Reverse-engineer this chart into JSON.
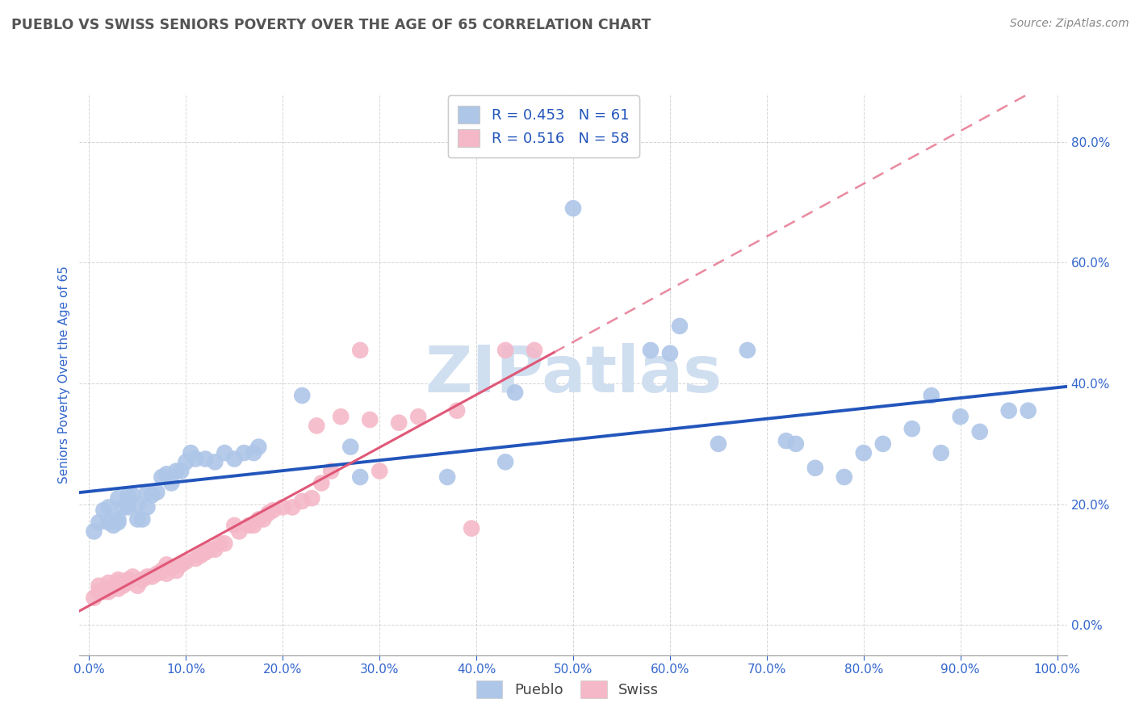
{
  "title": "PUEBLO VS SWISS SENIORS POVERTY OVER THE AGE OF 65 CORRELATION CHART",
  "source_text": "Source: ZipAtlas.com",
  "ylabel": "Seniors Poverty Over the Age of 65",
  "pueblo_R": 0.453,
  "pueblo_N": 61,
  "swiss_R": 0.516,
  "swiss_N": 58,
  "xlim": [
    -0.01,
    1.01
  ],
  "ylim": [
    -0.05,
    0.88
  ],
  "xticks": [
    0.0,
    0.1,
    0.2,
    0.3,
    0.4,
    0.5,
    0.6,
    0.7,
    0.8,
    0.9,
    1.0
  ],
  "yticks": [
    0.0,
    0.2,
    0.4,
    0.6,
    0.8
  ],
  "pueblo_color": "#aec6e8",
  "swiss_color": "#f4b8c8",
  "pueblo_line_color": "#2255bb",
  "swiss_line_color": "#e05878",
  "pueblo_scatter_x": [
    0.005,
    0.01,
    0.015,
    0.02,
    0.02,
    0.025,
    0.03,
    0.03,
    0.03,
    0.035,
    0.04,
    0.04,
    0.04,
    0.045,
    0.05,
    0.05,
    0.055,
    0.06,
    0.06,
    0.065,
    0.07,
    0.075,
    0.08,
    0.085,
    0.09,
    0.095,
    0.1,
    0.105,
    0.11,
    0.12,
    0.13,
    0.14,
    0.15,
    0.16,
    0.17,
    0.175,
    0.22,
    0.27,
    0.28,
    0.37,
    0.43,
    0.44,
    0.5,
    0.58,
    0.6,
    0.61,
    0.65,
    0.68,
    0.72,
    0.73,
    0.75,
    0.78,
    0.8,
    0.82,
    0.85,
    0.87,
    0.88,
    0.9,
    0.92,
    0.95,
    0.97
  ],
  "pueblo_scatter_y": [
    0.155,
    0.17,
    0.19,
    0.17,
    0.195,
    0.165,
    0.17,
    0.175,
    0.21,
    0.195,
    0.195,
    0.2,
    0.215,
    0.215,
    0.175,
    0.2,
    0.175,
    0.195,
    0.22,
    0.215,
    0.22,
    0.245,
    0.25,
    0.235,
    0.255,
    0.255,
    0.27,
    0.285,
    0.275,
    0.275,
    0.27,
    0.285,
    0.275,
    0.285,
    0.285,
    0.295,
    0.38,
    0.295,
    0.245,
    0.245,
    0.27,
    0.385,
    0.69,
    0.455,
    0.45,
    0.495,
    0.3,
    0.455,
    0.305,
    0.3,
    0.26,
    0.245,
    0.285,
    0.3,
    0.325,
    0.38,
    0.285,
    0.345,
    0.32,
    0.355,
    0.355
  ],
  "swiss_scatter_x": [
    0.005,
    0.01,
    0.01,
    0.015,
    0.02,
    0.02,
    0.025,
    0.03,
    0.03,
    0.03,
    0.035,
    0.04,
    0.04,
    0.045,
    0.05,
    0.055,
    0.06,
    0.065,
    0.07,
    0.075,
    0.08,
    0.08,
    0.085,
    0.09,
    0.095,
    0.1,
    0.11,
    0.115,
    0.12,
    0.125,
    0.13,
    0.135,
    0.14,
    0.15,
    0.155,
    0.165,
    0.17,
    0.175,
    0.18,
    0.185,
    0.19,
    0.2,
    0.21,
    0.22,
    0.23,
    0.235,
    0.24,
    0.25,
    0.26,
    0.28,
    0.29,
    0.3,
    0.32,
    0.34,
    0.38,
    0.395,
    0.43,
    0.46
  ],
  "swiss_scatter_y": [
    0.045,
    0.055,
    0.065,
    0.055,
    0.055,
    0.07,
    0.065,
    0.06,
    0.07,
    0.075,
    0.065,
    0.07,
    0.075,
    0.08,
    0.065,
    0.075,
    0.08,
    0.08,
    0.085,
    0.09,
    0.085,
    0.1,
    0.095,
    0.09,
    0.1,
    0.105,
    0.11,
    0.115,
    0.12,
    0.125,
    0.125,
    0.135,
    0.135,
    0.165,
    0.155,
    0.165,
    0.165,
    0.175,
    0.175,
    0.185,
    0.19,
    0.195,
    0.195,
    0.205,
    0.21,
    0.33,
    0.235,
    0.255,
    0.345,
    0.455,
    0.34,
    0.255,
    0.335,
    0.345,
    0.355,
    0.16,
    0.455,
    0.455
  ],
  "background_color": "#ffffff",
  "grid_color": "#bbbbbb",
  "title_color": "#555555",
  "axis_label_color": "#3366cc",
  "tick_label_color": "#3366cc",
  "watermark_text": "ZIPatlas",
  "watermark_color": "#d0dff0"
}
